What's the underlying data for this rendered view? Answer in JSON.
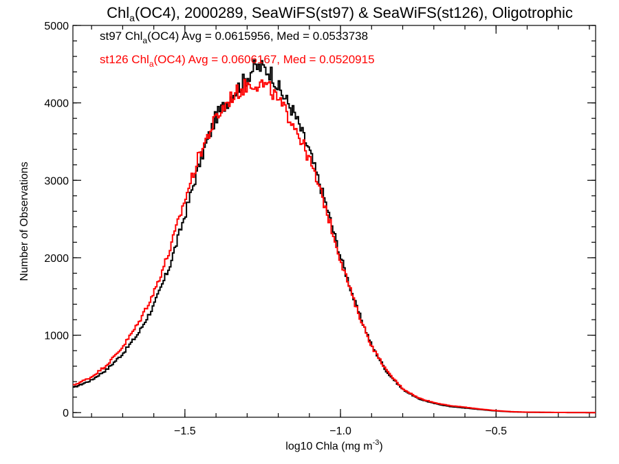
{
  "chart_data": {
    "type": "line",
    "title": {
      "main": "Chl",
      "sub": "a",
      "rest": "(OC4), 2000289, SeaWiFS(st97) & SeaWiFS(st126), Oligotrophic"
    },
    "xlabel": {
      "text": "log10 Chla (mg m",
      "sup": "-3",
      "end": ")"
    },
    "ylabel": "Number of Observations",
    "xlim": [
      -1.86,
      -0.18
    ],
    "ylim": [
      -60,
      5000
    ],
    "xticks": [
      {
        "value": -1.5,
        "label": "−1.5"
      },
      {
        "value": -1.0,
        "label": "−1.0"
      },
      {
        "value": -0.5,
        "label": "−0.5"
      }
    ],
    "x_minor_step": 0.1,
    "yticks": [
      {
        "value": 0,
        "label": "0"
      },
      {
        "value": 1000,
        "label": "1000"
      },
      {
        "value": 2000,
        "label": "2000"
      },
      {
        "value": 3000,
        "label": "3000"
      },
      {
        "value": 4000,
        "label": "4000"
      },
      {
        "value": 5000,
        "label": "5000"
      }
    ],
    "y_minor_step": 200,
    "grid": false,
    "annotations": [
      {
        "color": "#000000",
        "prefix": "st97 Chl",
        "sub": "a",
        "suffix": "(OC4) Avg = 0.0615956, Med = 0.0533738"
      },
      {
        "color": "#ff0000",
        "prefix": "st126 Chl",
        "sub": "a",
        "suffix": "(OC4) Avg = 0.0606167, Med = 0.0520915"
      }
    ],
    "series": [
      {
        "color": "#000000",
        "points": [
          [
            -1.86,
            320
          ],
          [
            -1.8,
            420
          ],
          [
            -1.75,
            560
          ],
          [
            -1.7,
            760
          ],
          [
            -1.65,
            1020
          ],
          [
            -1.6,
            1380
          ],
          [
            -1.55,
            1880
          ],
          [
            -1.5,
            2550
          ],
          [
            -1.45,
            3260
          ],
          [
            -1.4,
            3820
          ],
          [
            -1.35,
            4100
          ],
          [
            -1.3,
            4330
          ],
          [
            -1.28,
            4450
          ],
          [
            -1.25,
            4460
          ],
          [
            -1.22,
            4380
          ],
          [
            -1.2,
            4200
          ],
          [
            -1.15,
            3880
          ],
          [
            -1.1,
            3380
          ],
          [
            -1.05,
            2740
          ],
          [
            -1.0,
            2020
          ],
          [
            -0.95,
            1380
          ],
          [
            -0.9,
            870
          ],
          [
            -0.85,
            520
          ],
          [
            -0.8,
            300
          ],
          [
            -0.75,
            180
          ],
          [
            -0.7,
            120
          ],
          [
            -0.65,
            80
          ],
          [
            -0.6,
            60
          ],
          [
            -0.55,
            40
          ],
          [
            -0.5,
            22
          ],
          [
            -0.45,
            10
          ],
          [
            -0.4,
            5
          ],
          [
            -0.3,
            2
          ],
          [
            -0.18,
            0
          ]
        ]
      },
      {
        "color": "#ff0000",
        "points": [
          [
            -1.86,
            350
          ],
          [
            -1.8,
            460
          ],
          [
            -1.75,
            620
          ],
          [
            -1.7,
            850
          ],
          [
            -1.65,
            1150
          ],
          [
            -1.6,
            1550
          ],
          [
            -1.55,
            2080
          ],
          [
            -1.5,
            2750
          ],
          [
            -1.45,
            3370
          ],
          [
            -1.4,
            3800
          ],
          [
            -1.35,
            4080
          ],
          [
            -1.3,
            4230
          ],
          [
            -1.28,
            4260
          ],
          [
            -1.25,
            4240
          ],
          [
            -1.22,
            4150
          ],
          [
            -1.2,
            4020
          ],
          [
            -1.15,
            3740
          ],
          [
            -1.1,
            3270
          ],
          [
            -1.05,
            2680
          ],
          [
            -1.0,
            1980
          ],
          [
            -0.95,
            1360
          ],
          [
            -0.9,
            860
          ],
          [
            -0.85,
            530
          ],
          [
            -0.8,
            310
          ],
          [
            -0.75,
            190
          ],
          [
            -0.7,
            130
          ],
          [
            -0.65,
            90
          ],
          [
            -0.6,
            70
          ],
          [
            -0.55,
            45
          ],
          [
            -0.5,
            25
          ],
          [
            -0.45,
            12
          ],
          [
            -0.4,
            6
          ],
          [
            -0.3,
            2
          ],
          [
            -0.18,
            0
          ]
        ]
      }
    ]
  }
}
